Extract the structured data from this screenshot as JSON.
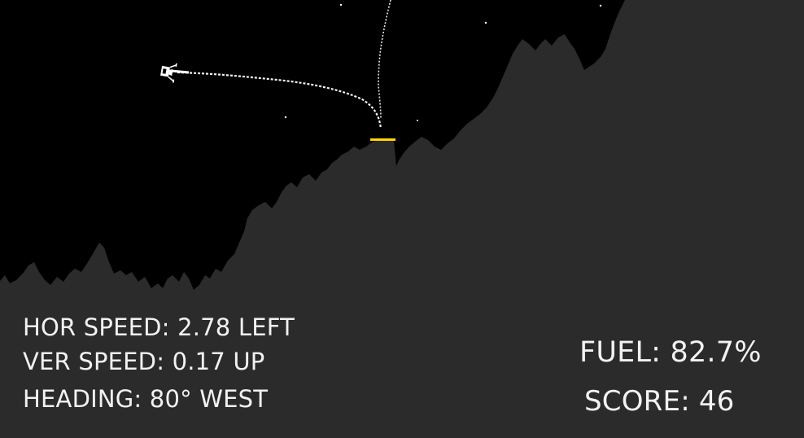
{
  "hud": {
    "hor_speed": "HOR SPEED: 2.78 LEFT",
    "ver_speed": "VER SPEED: 0.17 UP",
    "heading": "HEADING: 80° WEST",
    "fuel": "FUEL: 82.7%",
    "score": "SCORE: 46"
  },
  "colors": {
    "sky": "#000000",
    "terrain": "#2b2b2b",
    "landing_pad": "#ffd400",
    "trail": "#ffffff",
    "text": "#f2f2f2"
  },
  "icons": {
    "lander": "lunar-lander-icon"
  }
}
